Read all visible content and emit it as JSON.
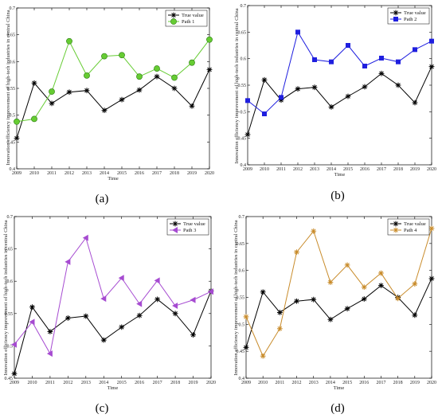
{
  "colors": {
    "true_value": "#000000",
    "path1": "#66cc33",
    "path2": "#1f1fdf",
    "path3": "#a64bd1",
    "path4": "#c88b2a"
  },
  "chart_data": [
    {
      "type": "line",
      "panel_label": "(a)",
      "x": [
        2009,
        2010,
        2011,
        2012,
        2013,
        2014,
        2015,
        2016,
        2017,
        2018,
        2019,
        2020
      ],
      "xlabel": "Time",
      "ylabel": "Innovation efficiency improvement of high-tech industries in central China",
      "ylim": [
        0.4,
        0.7
      ],
      "yticks": [
        0.4,
        0.45,
        0.5,
        0.55,
        0.6,
        0.65,
        0.7
      ],
      "legend_position": "top-right",
      "series": [
        {
          "name": "True value",
          "marker": "star",
          "color": "#000000",
          "values": [
            0.457,
            0.56,
            0.522,
            0.543,
            0.546,
            0.509,
            0.529,
            0.547,
            0.572,
            0.55,
            0.517,
            0.585
          ]
        },
        {
          "name": "Path 1",
          "marker": "circle",
          "color": "#66cc33",
          "values": [
            0.488,
            0.493,
            0.544,
            0.638,
            0.574,
            0.61,
            0.612,
            0.572,
            0.587,
            0.57,
            0.598,
            0.641
          ]
        }
      ]
    },
    {
      "type": "line",
      "panel_label": "(b)",
      "x": [
        2009,
        2010,
        2011,
        2012,
        2013,
        2014,
        2015,
        2016,
        2017,
        2018,
        2019,
        2020
      ],
      "xlabel": "Time",
      "ylabel": "Innovation efficiency improvement of high-tech industries in central China",
      "ylim": [
        0.4,
        0.7
      ],
      "yticks": [
        0.4,
        0.45,
        0.5,
        0.55,
        0.6,
        0.65,
        0.7
      ],
      "legend_position": "top-right",
      "series": [
        {
          "name": "True value",
          "marker": "star",
          "color": "#000000",
          "values": [
            0.457,
            0.56,
            0.522,
            0.543,
            0.546,
            0.509,
            0.529,
            0.547,
            0.572,
            0.55,
            0.517,
            0.585
          ]
        },
        {
          "name": "Path 2",
          "marker": "square",
          "color": "#1f1fdf",
          "values": [
            0.521,
            0.496,
            0.527,
            0.65,
            0.598,
            0.594,
            0.625,
            0.586,
            0.601,
            0.594,
            0.617,
            0.633
          ]
        }
      ]
    },
    {
      "type": "line",
      "panel_label": "(c)",
      "x": [
        2009,
        2010,
        2011,
        2012,
        2013,
        2014,
        2015,
        2016,
        2017,
        2018,
        2019,
        2020
      ],
      "xlabel": "Time",
      "ylabel": "Innovation efficiency improvement of high-tech industries in central China",
      "ylim": [
        0.45,
        0.7
      ],
      "yticks": [
        0.45,
        0.5,
        0.55,
        0.6,
        0.65,
        0.7
      ],
      "legend_position": "top-right",
      "series": [
        {
          "name": "True value",
          "marker": "star",
          "color": "#000000",
          "values": [
            0.457,
            0.56,
            0.522,
            0.543,
            0.546,
            0.509,
            0.529,
            0.547,
            0.572,
            0.55,
            0.517,
            0.585
          ]
        },
        {
          "name": "Path 3",
          "marker": "triangle-left",
          "color": "#a64bd1",
          "values": [
            0.502,
            0.537,
            0.488,
            0.63,
            0.667,
            0.573,
            0.605,
            0.565,
            0.601,
            0.562,
            0.571,
            0.584
          ]
        }
      ]
    },
    {
      "type": "line",
      "panel_label": "(d)",
      "x": [
        2009,
        2010,
        2011,
        2012,
        2013,
        2014,
        2015,
        2016,
        2017,
        2018,
        2019,
        2020
      ],
      "xlabel": "Time",
      "ylabel": "Innovation efficiency improvement of high-tech industries in central China",
      "ylim": [
        0.4,
        0.7
      ],
      "yticks": [
        0.4,
        0.45,
        0.5,
        0.55,
        0.6,
        0.65,
        0.7
      ],
      "legend_position": "top-right",
      "series": [
        {
          "name": "True value",
          "marker": "star",
          "color": "#000000",
          "values": [
            0.457,
            0.56,
            0.522,
            0.543,
            0.546,
            0.509,
            0.529,
            0.547,
            0.572,
            0.55,
            0.517,
            0.585
          ]
        },
        {
          "name": "Path 4",
          "marker": "star",
          "color": "#c88b2a",
          "values": [
            0.514,
            0.441,
            0.492,
            0.634,
            0.673,
            0.578,
            0.61,
            0.569,
            0.595,
            0.548,
            0.575,
            0.678
          ]
        }
      ]
    }
  ]
}
